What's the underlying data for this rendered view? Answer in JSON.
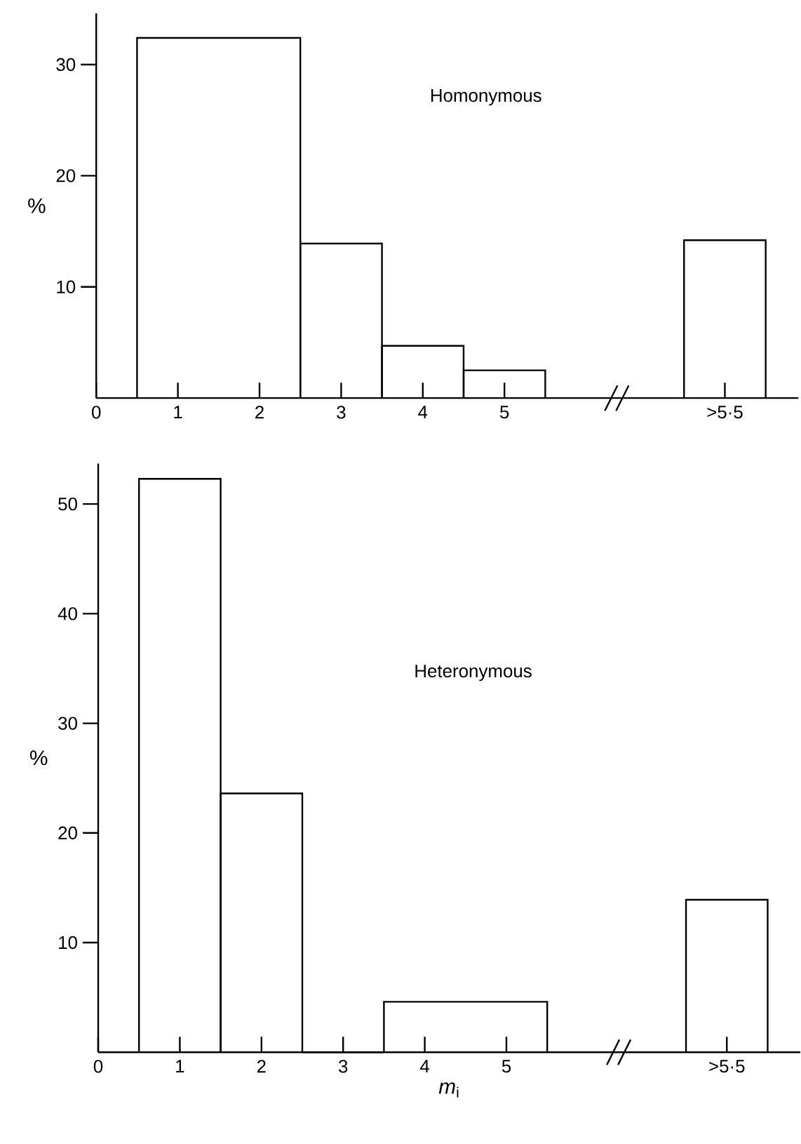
{
  "chart_data": [
    {
      "type": "histogram",
      "title": "Homonymous",
      "ylabel": "%",
      "color": "#000000",
      "bins": [
        0.5,
        2.5,
        3.5,
        4.5,
        5.5,
        7.2,
        8.2
      ],
      "values": [
        32.4,
        13.9,
        4.7,
        2.5,
        null,
        14.2
      ],
      "xlim": [
        0,
        8.6
      ],
      "xticks": [
        0,
        1,
        2,
        3,
        4,
        5,
        {
          "value": 7.7,
          "label": ">5·5"
        }
      ],
      "ylim": [
        0,
        34.6
      ],
      "yticks": [
        10,
        20,
        30
      ]
    },
    {
      "type": "histogram",
      "title": "Heteronymous",
      "ylabel": "%",
      "xlabel": "*m*$_{i}$",
      "color": "#000000",
      "bins": [
        0.5,
        1.5,
        2.5,
        3.5,
        5.5,
        7.2,
        8.2
      ],
      "values": [
        52.3,
        23.6,
        0,
        4.6,
        null,
        13.9
      ],
      "xlim": [
        0,
        8.6
      ],
      "xticks": [
        0,
        1,
        2,
        3,
        4,
        5,
        {
          "value": 7.7,
          "label": ">5·5"
        }
      ],
      "ylim": [
        0,
        53.7
      ],
      "yticks": [
        10,
        20,
        30,
        40,
        50
      ]
    }
  ]
}
